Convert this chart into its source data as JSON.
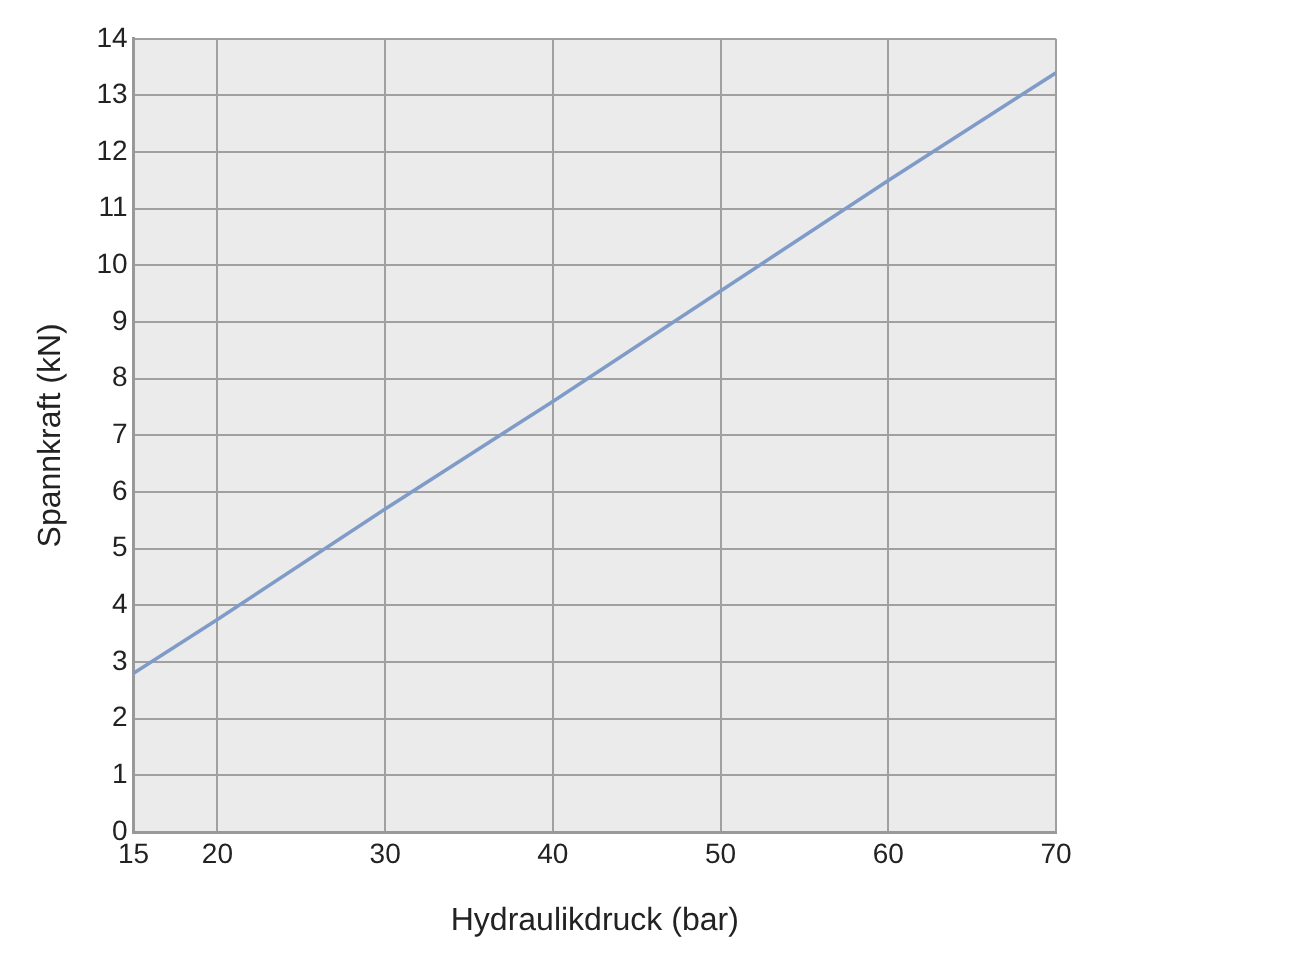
{
  "chart_data": {
    "type": "line",
    "xlabel": "Hydraulikdruck (bar)",
    "ylabel": "Spannkraft (kN)",
    "x": [
      15,
      20,
      30,
      40,
      50,
      60,
      70
    ],
    "series": [
      {
        "color": "#7f9cc8",
        "values": [
          2.8,
          3.75,
          5.7,
          7.6,
          9.55,
          11.5,
          13.4
        ]
      }
    ],
    "xlim": [
      15,
      70
    ],
    "xticks": [
      15,
      20,
      30,
      40,
      50,
      60,
      70
    ],
    "ylim": [
      0,
      14
    ],
    "yticks": [
      0,
      1,
      2,
      3,
      4,
      5,
      6,
      7,
      8,
      9,
      10,
      11,
      12,
      13,
      14
    ],
    "grid": true,
    "legend": false,
    "marker": "none",
    "line_style": "solid"
  }
}
